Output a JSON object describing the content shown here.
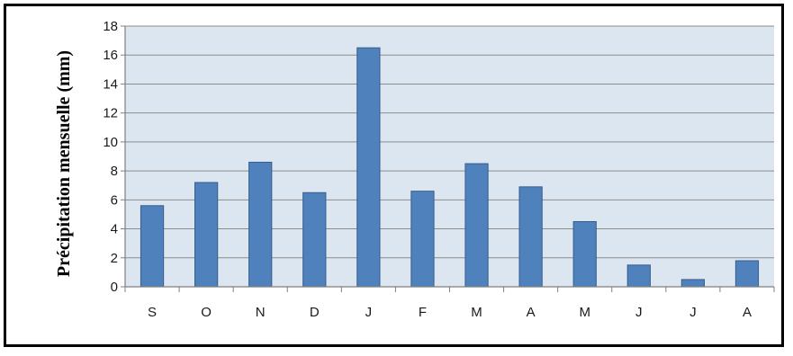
{
  "chart_data": {
    "type": "bar",
    "title": "",
    "xlabel": "",
    "ylabel": "Précipitation  mensuelle (mm)",
    "categories": [
      "S",
      "O",
      "N",
      "D",
      "J",
      "F",
      "M",
      "A",
      "M",
      "J",
      "J",
      "A"
    ],
    "values": [
      5.6,
      7.2,
      8.6,
      6.5,
      16.5,
      6.6,
      8.5,
      6.9,
      4.5,
      1.5,
      0.5,
      1.8
    ],
    "ylim": [
      0,
      18
    ],
    "yticks": [
      0,
      2,
      4,
      6,
      8,
      10,
      12,
      14,
      16,
      18
    ],
    "grid": true,
    "legend": "none",
    "colors": {
      "bar": "#4f81bd",
      "bar_edge": "#385d8a",
      "plot_background": "#dce6f1",
      "gridline": "#8c8c8c"
    }
  }
}
